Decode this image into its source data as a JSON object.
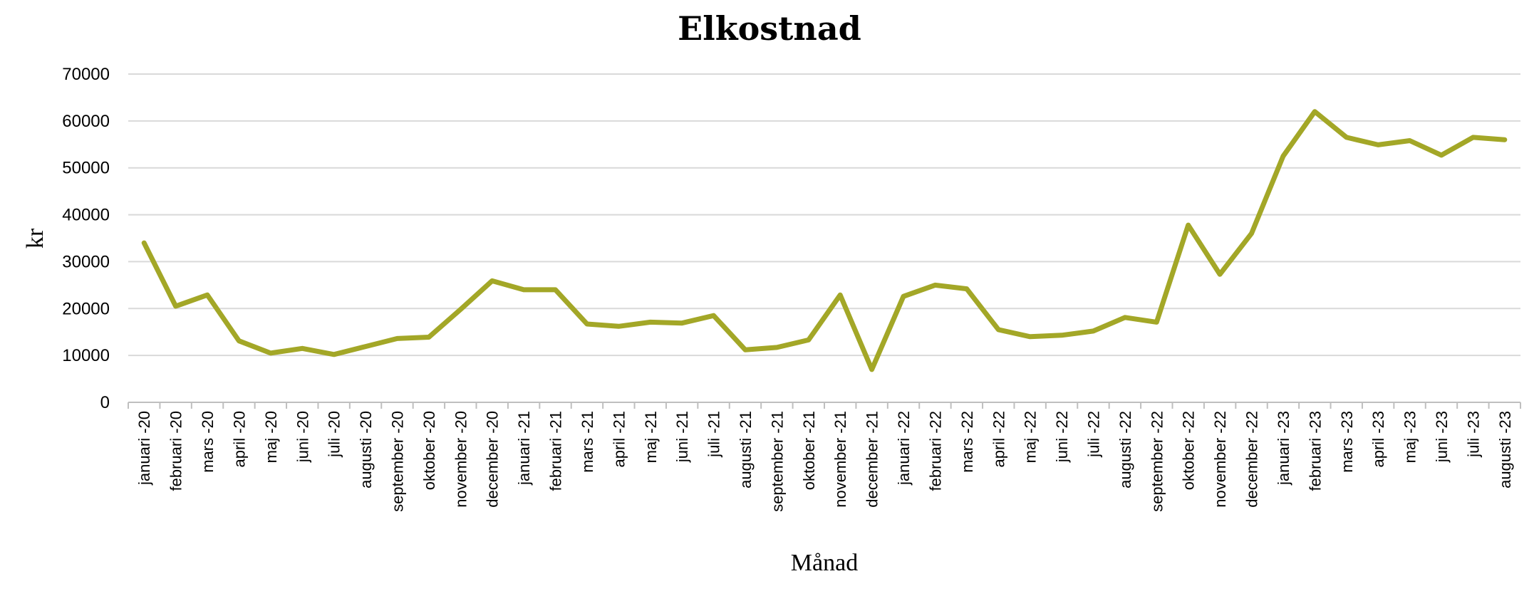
{
  "chart_data": {
    "type": "line",
    "title": "Elkostnad",
    "xlabel": "Månad",
    "ylabel": "kr",
    "ylim": [
      0,
      70000
    ],
    "yticks": [
      "0",
      "10000",
      "20000",
      "30000",
      "40000",
      "50000",
      "60000",
      "70000"
    ],
    "grid": true,
    "legend": "none",
    "categories": [
      "januari -20",
      "februari -20",
      "mars -20",
      "april -20",
      "maj -20",
      "juni -20",
      "juli -20",
      "augusti -20",
      "september -20",
      "oktober -20",
      "november -20",
      "december -20",
      "januari -21",
      "februari -21",
      "mars -21",
      "april -21",
      "maj -21",
      "juni -21",
      "juli -21",
      "augusti -21",
      "september -21",
      "oktober -21",
      "november -21",
      "december -21",
      "januari -22",
      "februari -22",
      "mars -22",
      "april -22",
      "maj -22",
      "juni -22",
      "juli -22",
      "augusti -22",
      "september -22",
      "oktober -22",
      "november -22",
      "december -22",
      "januari -23",
      "februari -23",
      "mars -23",
      "april -23",
      "maj -23",
      "juni -23",
      "juli -23",
      "augusti -23"
    ],
    "series": [
      {
        "color": "#a3a727",
        "values": [
          34000,
          20500,
          22900,
          13100,
          10500,
          11500,
          10200,
          11900,
          13600,
          13900,
          19800,
          25900,
          24000,
          24000,
          16700,
          16200,
          17100,
          16900,
          18500,
          11200,
          11700,
          13300,
          22900,
          7000,
          22600,
          25000,
          24200,
          15500,
          14000,
          14300,
          15200,
          18100,
          17100,
          37800,
          27300,
          36000,
          52500,
          62000,
          56500,
          54900,
          55800,
          52700,
          56500,
          56000
        ]
      }
    ]
  }
}
